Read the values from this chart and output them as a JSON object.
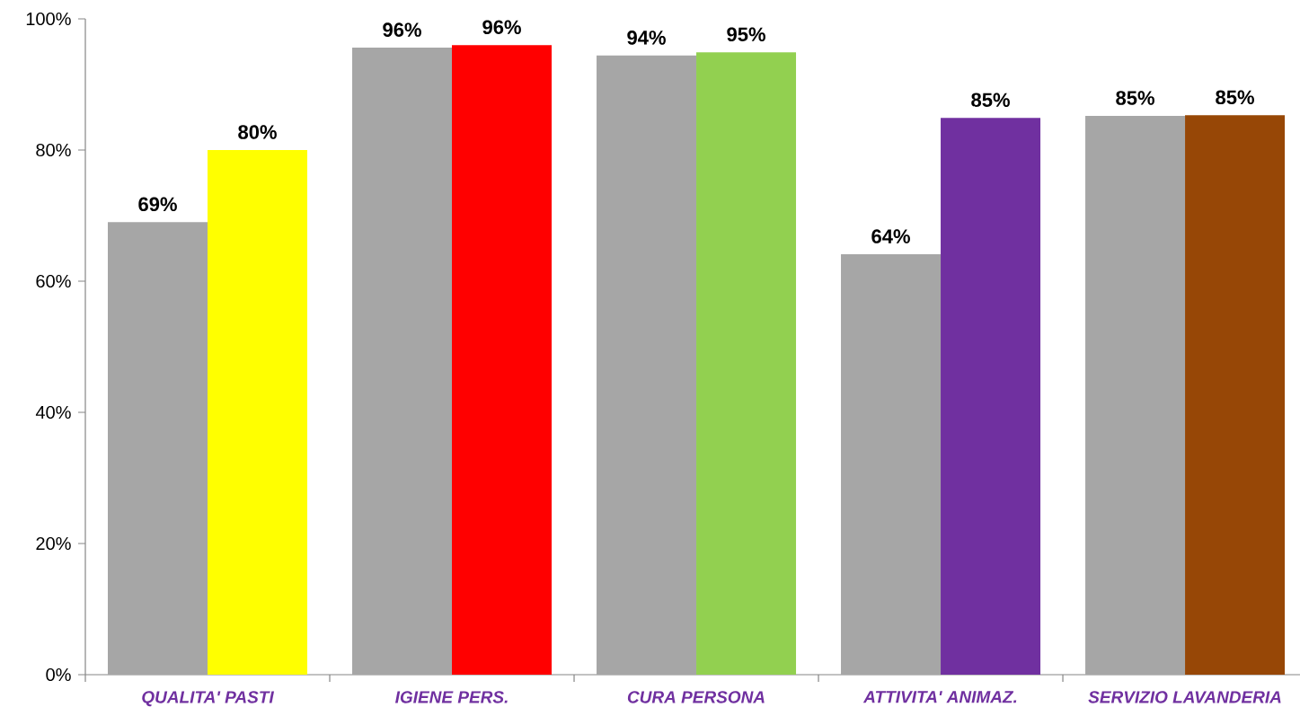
{
  "chart_data": {
    "type": "bar",
    "categories": [
      "QUALITA' PASTI",
      "IGIENE PERS.",
      "CURA PERSONA",
      "ATTIVITA' ANIMAZ.",
      "SERVIZIO LAVANDERIA"
    ],
    "series": [
      {
        "color": "#a6a6a6",
        "values": [
          69,
          95.6,
          94.4,
          64.1,
          85.2
        ],
        "value_labels": [
          "69%",
          "96%",
          "94%",
          "64%",
          "85%"
        ]
      },
      {
        "colors": [
          "#ffff00",
          "#ff0000",
          "#92d050",
          "#7030a0",
          "#974706"
        ],
        "values": [
          80,
          96,
          94.9,
          84.9,
          85.3
        ],
        "value_labels": [
          "80%",
          "96%",
          "95%",
          "85%",
          "85%"
        ]
      }
    ],
    "ylim": [
      0,
      100
    ],
    "yticks": [
      {
        "value": 0,
        "label": "0%"
      },
      {
        "value": 20,
        "label": "20%"
      },
      {
        "value": 40,
        "label": "40%"
      },
      {
        "value": 60,
        "label": "60%"
      },
      {
        "value": 80,
        "label": "80%"
      },
      {
        "value": 100,
        "label": "100%"
      }
    ]
  }
}
